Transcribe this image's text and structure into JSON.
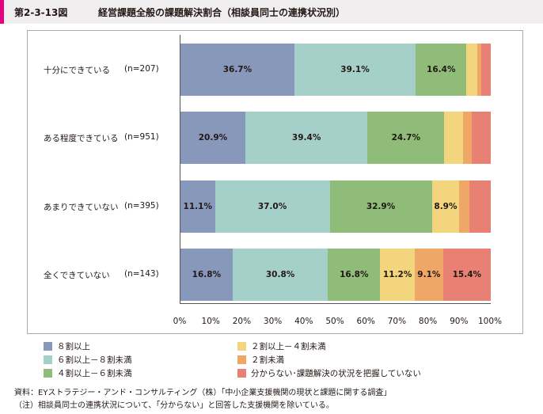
{
  "header": {
    "figure_number": "第2-3-13図",
    "title": "経営課題全般の課題解決割合（相談員同士の連携状況別）"
  },
  "chart_data": {
    "type": "bar",
    "orientation": "horizontal",
    "stacked": true,
    "categories": [
      "十分にできている",
      "ある程度できている",
      "あまりできていない",
      "全くできていない"
    ],
    "sample_sizes": [
      "(n=207)",
      "(n=951)",
      "(n=395)",
      "(n=143)"
    ],
    "series": [
      {
        "name": "８割以上",
        "color": "#8898ba",
        "values": [
          36.7,
          20.9,
          11.1,
          16.8
        ],
        "labels": [
          "36.7%",
          "20.9%",
          "11.1%",
          "16.8%"
        ]
      },
      {
        "name": "６割以上－８割未満",
        "color": "#a5d0c9",
        "values": [
          39.1,
          39.4,
          37.0,
          30.8
        ],
        "labels": [
          "39.1%",
          "39.4%",
          "37.0%",
          "30.8%"
        ]
      },
      {
        "name": "４割以上－６割未満",
        "color": "#8fbc78",
        "values": [
          16.4,
          24.7,
          32.9,
          16.8
        ],
        "labels": [
          "16.4%",
          "24.7%",
          "32.9%",
          "16.8%"
        ]
      },
      {
        "name": "２割以上－４割未満",
        "color": "#f2d57c",
        "values": [
          3.4,
          6.0,
          8.9,
          11.2
        ],
        "labels": [
          "",
          "",
          "8.9%",
          "11.2%"
        ]
      },
      {
        "name": "２割未満",
        "color": "#eea766",
        "values": [
          1.4,
          2.8,
          3.2,
          9.1
        ],
        "labels": [
          "",
          "",
          "",
          "9.1%"
        ]
      },
      {
        "name": "分からない･課題解決の状況を把握していない",
        "color": "#e88073",
        "values": [
          3.0,
          6.2,
          6.9,
          15.4
        ],
        "labels": [
          "",
          "",
          "",
          "15.4%"
        ]
      }
    ],
    "x_ticks": [
      "0%",
      "10%",
      "20%",
      "30%",
      "40%",
      "50%",
      "60%",
      "70%",
      "80%",
      "90%",
      "100%"
    ],
    "xlim": [
      0,
      100
    ],
    "legend_placement": "bottom"
  },
  "notes": {
    "source": "資料：EYストラテジー・アンド・コンサルティング（株）「中小企業支援機関の現状と課題に関する調査」",
    "remark": "（注）相談員同士の連携状況について、「分からない」と回答した支援機関を除いている。"
  }
}
